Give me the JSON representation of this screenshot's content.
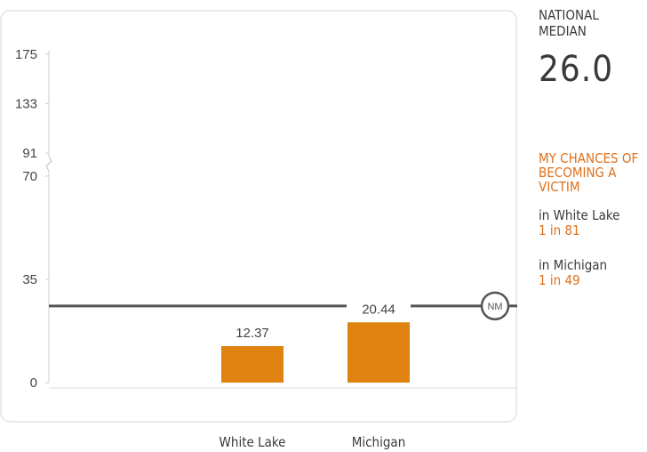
{
  "chart_data": {
    "type": "bar",
    "categories": [
      "White Lake",
      "Michigan"
    ],
    "values": [
      12.37,
      20.44
    ],
    "value_labels": [
      "12.37",
      "20.44"
    ],
    "y_ticks": [
      0,
      35,
      70,
      91,
      133,
      175
    ],
    "y_tick_labels": [
      "0",
      "35",
      "70",
      "91",
      "133",
      "175"
    ],
    "axis_break_between": [
      70,
      91
    ],
    "ylim": [
      0,
      175
    ],
    "reference_line": {
      "value": 26.0,
      "marker_label": "NM"
    },
    "title": "",
    "xlabel": "",
    "ylabel": "",
    "grid": false,
    "bar_color": "#e0820f",
    "reference_line_color": "#555555"
  },
  "side_panel": {
    "national_median_label": "NATIONAL MEDIAN",
    "national_median_value": "26.0",
    "chances_title": "MY CHANCES OF BECOMING A VICTIM",
    "locations": [
      {
        "name": "in White Lake",
        "odds": "1 in 81"
      },
      {
        "name": "in Michigan",
        "odds": "1 in 49"
      }
    ],
    "accent_color": "#e0701a"
  }
}
